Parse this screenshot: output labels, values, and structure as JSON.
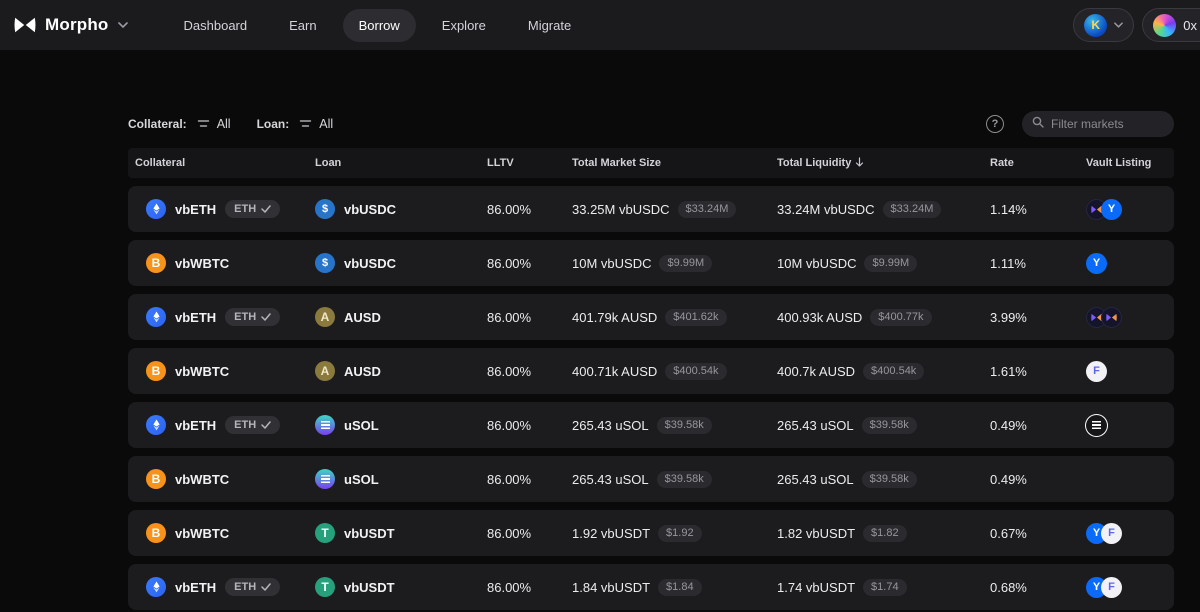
{
  "brand": {
    "name": "Morpho"
  },
  "nav": {
    "active": "Borrow",
    "items": [
      {
        "label": "Dashboard"
      },
      {
        "label": "Earn"
      },
      {
        "label": "Borrow"
      },
      {
        "label": "Explore"
      },
      {
        "label": "Migrate"
      }
    ]
  },
  "account": {
    "network_avatar_letter": "K",
    "address_prefix": "0x"
  },
  "filters": {
    "collateral_label": "Collateral:",
    "collateral_value": "All",
    "loan_label": "Loan:",
    "loan_value": "All",
    "search_placeholder": "Filter markets"
  },
  "table": {
    "columns": [
      "Collateral",
      "Loan",
      "LLTV",
      "Total Market Size",
      "Total Liquidity",
      "Rate",
      "Vault Listing"
    ],
    "sorted_column": "Total Liquidity",
    "sort_direction": "desc",
    "rows": [
      {
        "collateral": {
          "token": "vbETH",
          "icon": "eth",
          "badge": "ETH"
        },
        "loan": {
          "token": "vbUSDC",
          "icon": "usdc"
        },
        "lltv": "86.00%",
        "market_size": {
          "amount": "33.25M vbUSDC",
          "usd": "$33.24M"
        },
        "liquidity": {
          "amount": "33.24M vbUSDC",
          "usd": "$33.24M"
        },
        "rate": "1.14%",
        "vaults": [
          "morpho",
          "yearn"
        ]
      },
      {
        "collateral": {
          "token": "vbWBTC",
          "icon": "wbtc",
          "badge": null
        },
        "loan": {
          "token": "vbUSDC",
          "icon": "usdc"
        },
        "lltv": "86.00%",
        "market_size": {
          "amount": "10M vbUSDC",
          "usd": "$9.99M"
        },
        "liquidity": {
          "amount": "10M vbUSDC",
          "usd": "$9.99M"
        },
        "rate": "1.11%",
        "vaults": [
          "yearn"
        ]
      },
      {
        "collateral": {
          "token": "vbETH",
          "icon": "eth",
          "badge": "ETH"
        },
        "loan": {
          "token": "AUSD",
          "icon": "ausd"
        },
        "lltv": "86.00%",
        "market_size": {
          "amount": "401.79k AUSD",
          "usd": "$401.62k"
        },
        "liquidity": {
          "amount": "400.93k AUSD",
          "usd": "$400.77k"
        },
        "rate": "3.99%",
        "vaults": [
          "morpho",
          "morpho"
        ]
      },
      {
        "collateral": {
          "token": "vbWBTC",
          "icon": "wbtc",
          "badge": null
        },
        "loan": {
          "token": "AUSD",
          "icon": "ausd"
        },
        "lltv": "86.00%",
        "market_size": {
          "amount": "400.71k AUSD",
          "usd": "$400.54k"
        },
        "liquidity": {
          "amount": "400.7k AUSD",
          "usd": "$400.54k"
        },
        "rate": "1.61%",
        "vaults": [
          "flagship"
        ]
      },
      {
        "collateral": {
          "token": "vbETH",
          "icon": "eth",
          "badge": "ETH"
        },
        "loan": {
          "token": "uSOL",
          "icon": "usol"
        },
        "lltv": "86.00%",
        "market_size": {
          "amount": "265.43 uSOL",
          "usd": "$39.58k"
        },
        "liquidity": {
          "amount": "265.43 uSOL",
          "usd": "$39.58k"
        },
        "rate": "0.49%",
        "vaults": [
          "bars"
        ]
      },
      {
        "collateral": {
          "token": "vbWBTC",
          "icon": "wbtc",
          "badge": null
        },
        "loan": {
          "token": "uSOL",
          "icon": "usol"
        },
        "lltv": "86.00%",
        "market_size": {
          "amount": "265.43 uSOL",
          "usd": "$39.58k"
        },
        "liquidity": {
          "amount": "265.43 uSOL",
          "usd": "$39.58k"
        },
        "rate": "0.49%",
        "vaults": []
      },
      {
        "collateral": {
          "token": "vbWBTC",
          "icon": "wbtc",
          "badge": null
        },
        "loan": {
          "token": "vbUSDT",
          "icon": "usdt"
        },
        "lltv": "86.00%",
        "market_size": {
          "amount": "1.92 vbUSDT",
          "usd": "$1.92"
        },
        "liquidity": {
          "amount": "1.82 vbUSDT",
          "usd": "$1.82"
        },
        "rate": "0.67%",
        "vaults": [
          "yearn",
          "flagship"
        ]
      },
      {
        "collateral": {
          "token": "vbETH",
          "icon": "eth",
          "badge": "ETH"
        },
        "loan": {
          "token": "vbUSDT",
          "icon": "usdt"
        },
        "lltv": "86.00%",
        "market_size": {
          "amount": "1.84 vbUSDT",
          "usd": "$1.84"
        },
        "liquidity": {
          "amount": "1.74 vbUSDT",
          "usd": "$1.74"
        },
        "rate": "0.68%",
        "vaults": [
          "yearn",
          "flagship"
        ]
      }
    ]
  },
  "colors": {
    "page_bg": "#0a0a0b",
    "header_bg": "#1b1b1e",
    "row_bg": "#1c1c1f",
    "eth": "#2b63f0",
    "wbtc": "#f7931a",
    "usdc": "#2775ca",
    "ausd": "#8a7a3e",
    "usol_top": "#3dd6c3",
    "usol_bottom": "#7a3ff0",
    "usdt": "#26a17b",
    "yearn_blue": "#0b6bf9"
  }
}
